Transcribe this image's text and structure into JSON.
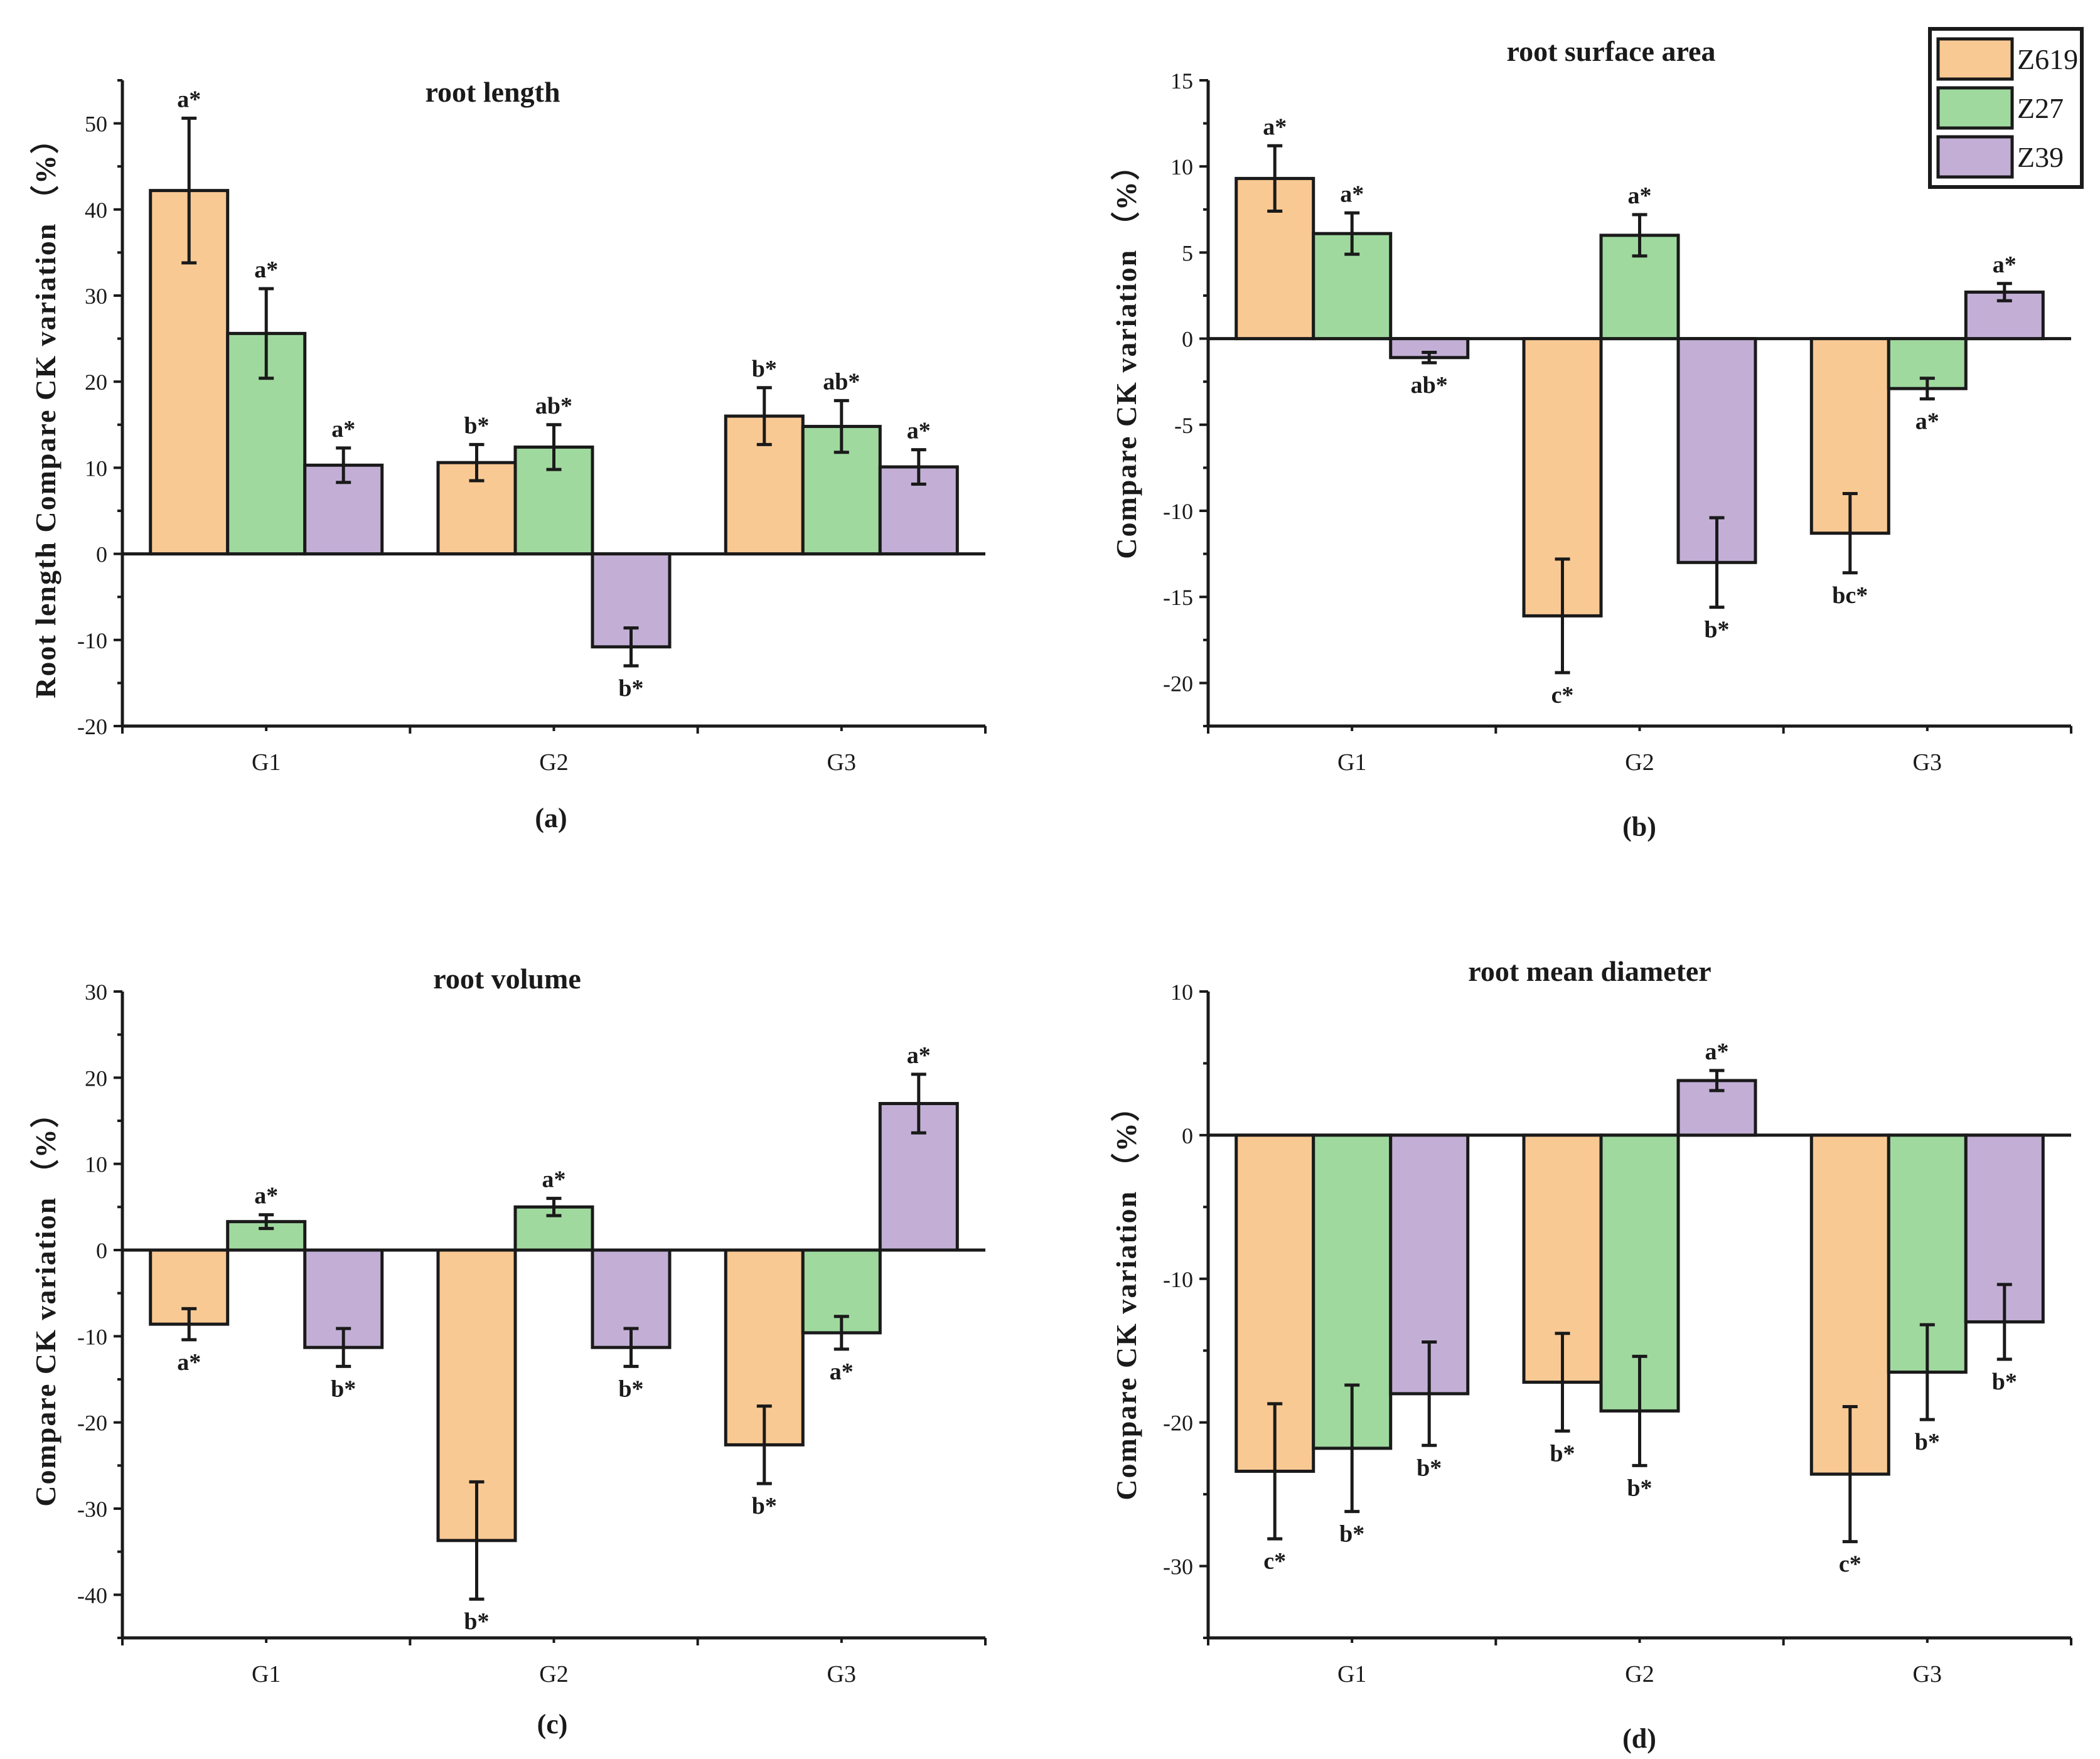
{
  "colors": {
    "Z619": "#f9c994",
    "Z27": "#9fd99e",
    "Z39": "#c3afd6",
    "axis": "#1a1a1a"
  },
  "legend": {
    "position": "top-right",
    "items": [
      "Z619",
      "Z27",
      "Z39"
    ]
  },
  "chart_data": [
    {
      "type": "bar",
      "title": "root length",
      "caption": "(a)",
      "ylabel": "Root length Compare CK variation （%）",
      "xlabel": "",
      "categories": [
        "G1",
        "G2",
        "G3"
      ],
      "ylim": [
        -20,
        55
      ],
      "yticks": [
        50,
        40,
        30,
        20,
        10,
        0,
        -10,
        -20
      ],
      "series": [
        {
          "name": "Z619",
          "values": [
            42.2,
            10.6,
            16.0
          ],
          "errors": [
            8.4,
            2.1,
            3.3
          ],
          "labels": [
            "a*",
            "b*",
            "b*"
          ]
        },
        {
          "name": "Z27",
          "values": [
            25.6,
            12.4,
            14.8
          ],
          "errors": [
            5.2,
            2.6,
            3.0
          ],
          "labels": [
            "a*",
            "ab*",
            "ab*"
          ]
        },
        {
          "name": "Z39",
          "values": [
            10.3,
            -10.8,
            10.1
          ],
          "errors": [
            2.0,
            2.2,
            2.0
          ],
          "labels": [
            "a*",
            "b*",
            "a*"
          ]
        }
      ]
    },
    {
      "type": "bar",
      "title": "root surface area",
      "caption": "(b)",
      "ylabel": "Compare CK variation （%）",
      "xlabel": "",
      "categories": [
        "G1",
        "G2",
        "G3"
      ],
      "ylim": [
        -22.5,
        15
      ],
      "yticks": [
        15,
        10,
        5,
        0,
        -5,
        -10,
        -15,
        -20
      ],
      "series": [
        {
          "name": "Z619",
          "values": [
            9.3,
            -16.1,
            -11.3
          ],
          "errors": [
            1.9,
            3.3,
            2.3
          ],
          "labels": [
            "a*",
            "c*",
            "bc*"
          ]
        },
        {
          "name": "Z27",
          "values": [
            6.1,
            6.0,
            -2.9
          ],
          "errors": [
            1.2,
            1.2,
            0.6
          ],
          "labels": [
            "a*",
            "a*",
            "a*"
          ]
        },
        {
          "name": "Z39",
          "values": [
            -1.1,
            -13.0,
            2.7
          ],
          "errors": [
            0.3,
            2.6,
            0.5
          ],
          "labels": [
            "ab*",
            "b*",
            "a*"
          ]
        }
      ]
    },
    {
      "type": "bar",
      "title": "root volume",
      "caption": "(c)",
      "ylabel": "Compare CK variation （%）",
      "xlabel": "",
      "categories": [
        "G1",
        "G2",
        "G3"
      ],
      "ylim": [
        -45,
        30
      ],
      "yticks": [
        30,
        20,
        10,
        0,
        -10,
        -20,
        -30,
        -40
      ],
      "series": [
        {
          "name": "Z619",
          "values": [
            -8.6,
            -33.7,
            -22.6
          ],
          "errors": [
            1.8,
            6.8,
            4.5
          ],
          "labels": [
            "a*",
            "b*",
            "b*"
          ]
        },
        {
          "name": "Z27",
          "values": [
            3.3,
            5.0,
            -9.6
          ],
          "errors": [
            0.8,
            1.0,
            1.9
          ],
          "labels": [
            "a*",
            "a*",
            "a*"
          ]
        },
        {
          "name": "Z39",
          "values": [
            -11.3,
            -11.3,
            17.0
          ],
          "errors": [
            2.2,
            2.2,
            3.4
          ],
          "labels": [
            "b*",
            "b*",
            "a*"
          ]
        }
      ]
    },
    {
      "type": "bar",
      "title": "root mean diameter",
      "caption": "(d)",
      "ylabel": "Compare CK variation （%）",
      "xlabel": "",
      "categories": [
        "G1",
        "G2",
        "G3"
      ],
      "ylim": [
        -35,
        10
      ],
      "yticks": [
        10,
        0,
        -10,
        -20,
        -30
      ],
      "series": [
        {
          "name": "Z619",
          "values": [
            -23.4,
            -17.2,
            -23.6
          ],
          "errors": [
            4.7,
            3.4,
            4.7
          ],
          "labels": [
            "c*",
            "b*",
            "c*"
          ]
        },
        {
          "name": "Z27",
          "values": [
            -21.8,
            -19.2,
            -16.5
          ],
          "errors": [
            4.4,
            3.8,
            3.3
          ],
          "labels": [
            "b*",
            "b*",
            "b*"
          ]
        },
        {
          "name": "Z39",
          "values": [
            -18.0,
            3.8,
            -13.0
          ],
          "errors": [
            3.6,
            0.7,
            2.6
          ],
          "labels": [
            "b*",
            "a*",
            "b*"
          ]
        }
      ]
    }
  ]
}
